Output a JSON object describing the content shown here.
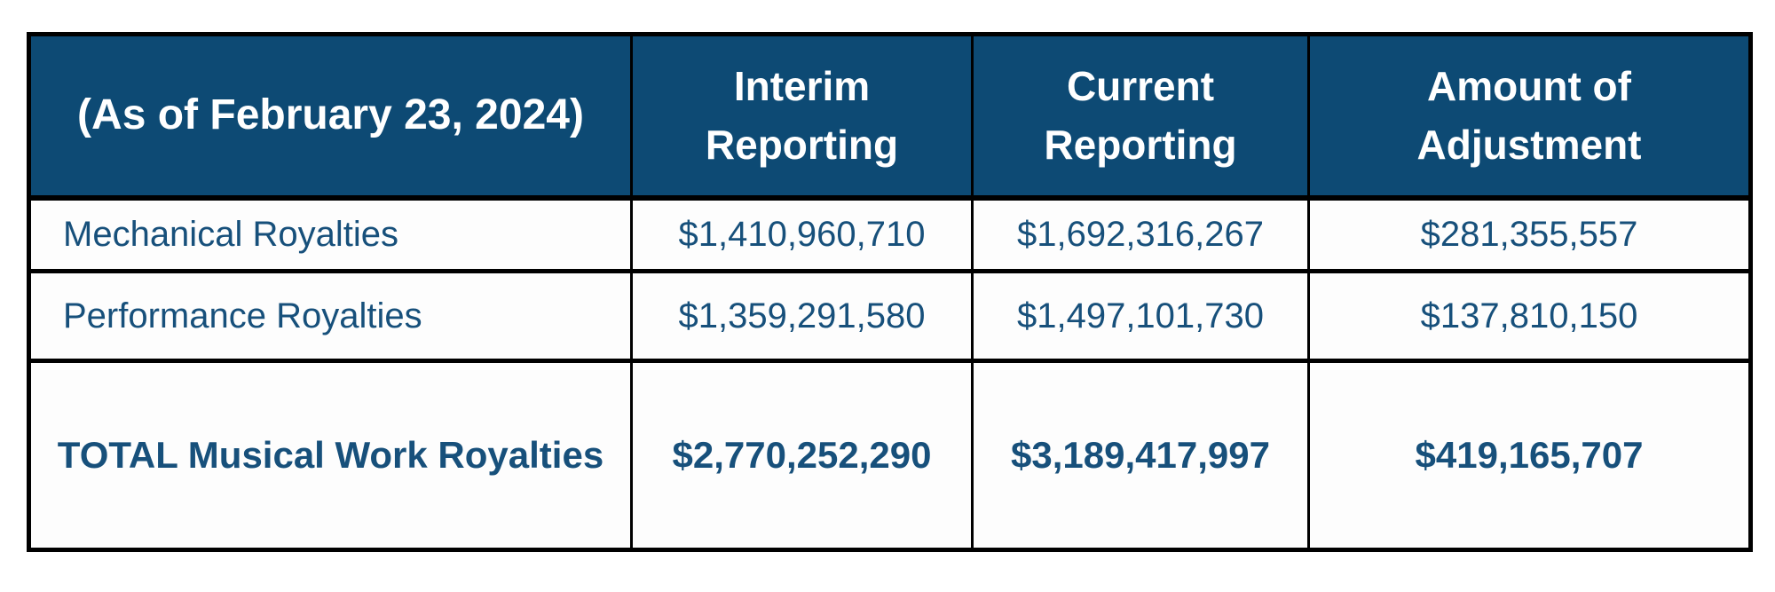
{
  "table": {
    "columns": [
      {
        "label": "(As of February 23, 2024)"
      },
      {
        "label": "Interim Reporting"
      },
      {
        "label": "Current Reporting"
      },
      {
        "label": "Amount of Adjustment"
      }
    ],
    "rows": [
      {
        "label": "Mechanical Royalties",
        "interim": "$1,410,960,710",
        "current": "$1,692,316,267",
        "adjustment": "$281,355,557"
      },
      {
        "label": "Performance Royalties",
        "interim": "$1,359,291,580",
        "current": "$1,497,101,730",
        "adjustment": "$137,810,150"
      }
    ],
    "total": {
      "label": "TOTAL Musical Work Royalties",
      "interim": "$2,770,252,290",
      "current": "$3,189,417,997",
      "adjustment": "$419,165,707"
    }
  },
  "colors": {
    "header_bg": "#0d4a74",
    "header_text": "#ffffff",
    "body_text": "#17507b",
    "border_color": "#000000",
    "cell_bg": "#fdfdfd",
    "page_bg": "#ffffff"
  }
}
